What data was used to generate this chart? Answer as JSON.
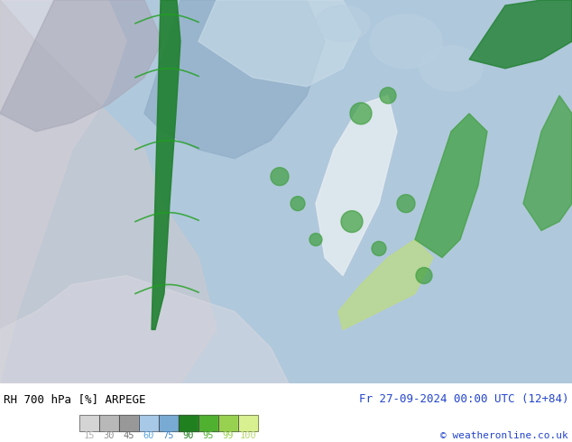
{
  "title_left": "RH 700 hPa [%] ARPEGE",
  "title_right": "Fr 27-09-2024 00:00 UTC (12+84)",
  "copyright": "© weatheronline.co.uk",
  "colorbar_values": [
    15,
    30,
    45,
    60,
    75,
    90,
    95,
    99,
    100
  ],
  "colorbar_colors": [
    "#d4d4d4",
    "#b8b8b8",
    "#989898",
    "#a8c8e8",
    "#78aad4",
    "#208020",
    "#50b030",
    "#98d050",
    "#d8f090"
  ],
  "colorbar_label_colors": [
    "#b0b0b0",
    "#909090",
    "#707070",
    "#60a8e0",
    "#4888c8",
    "#208020",
    "#50b030",
    "#98d050",
    "#b8d870"
  ],
  "bg_color": "#ffffff",
  "left_text_color": "#000000",
  "right_text_color": "#2244cc",
  "copyright_color": "#2244cc",
  "figsize": [
    6.34,
    4.9
  ],
  "dpi": 100,
  "map_bg_color": "#b0c8dc",
  "map_colors": {
    "deep_gray": "#a8a8b8",
    "light_gray": "#c8c8d0",
    "pale_gray": "#d8d8e0",
    "mid_blue": "#90aec8",
    "light_blue": "#b8cfe0",
    "pale_blue": "#c8dce8",
    "green_dark": "#208030",
    "green_mid": "#40a040",
    "green_light": "#80c860",
    "yellow_green": "#c0e070",
    "white_patch": "#e8eef2"
  }
}
